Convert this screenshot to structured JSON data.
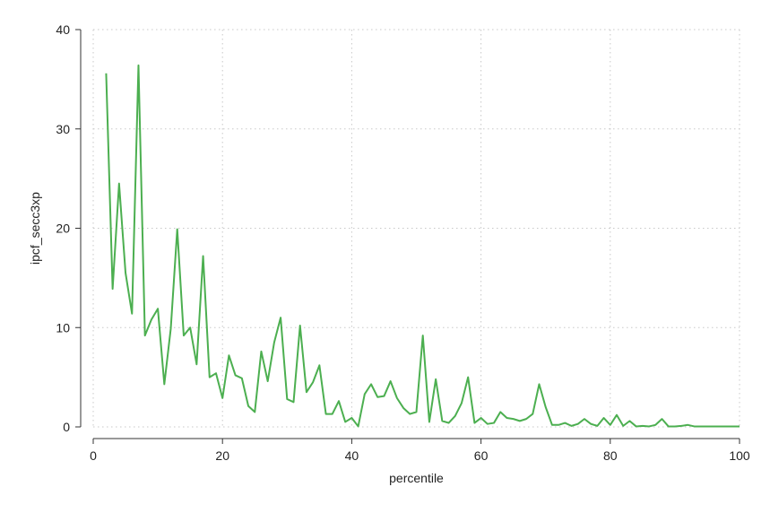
{
  "chart_data": {
    "type": "line",
    "title": "",
    "xlabel": "percentile",
    "ylabel": "ipcf_secc3xp",
    "xlim": [
      0,
      100
    ],
    "ylim": [
      0,
      40
    ],
    "x_ticks": [
      0,
      20,
      40,
      60,
      80,
      100
    ],
    "y_ticks": [
      0,
      10,
      20,
      30,
      40
    ],
    "grid": true,
    "line_color": "#4CAF50",
    "series": [
      {
        "x": [
          2,
          3,
          4,
          5,
          6,
          7,
          8,
          9,
          10,
          11,
          12,
          13,
          14,
          15,
          16,
          17,
          18,
          19,
          20,
          21,
          22,
          23,
          24,
          25,
          26,
          27,
          28,
          29,
          30,
          31,
          32,
          33,
          34,
          35,
          36,
          37,
          38,
          39,
          40,
          41,
          42,
          43,
          44,
          45,
          46,
          47,
          48,
          49,
          50,
          51,
          52,
          53,
          54,
          55,
          56,
          57,
          58,
          59,
          60,
          61,
          62,
          63,
          64,
          65,
          66,
          67,
          68,
          69,
          70,
          71,
          72,
          73,
          74,
          75,
          76,
          77,
          78,
          79,
          80,
          81,
          82,
          83,
          84,
          85,
          86,
          87,
          88,
          89,
          90,
          91,
          92,
          93,
          94,
          95,
          96,
          97,
          98,
          99,
          100
        ],
        "y": [
          35.6,
          13.9,
          24.5,
          15.5,
          11.4,
          36.4,
          9.2,
          10.8,
          11.9,
          4.3,
          9.9,
          19.9,
          9.2,
          10.0,
          6.3,
          17.2,
          5.0,
          5.4,
          2.9,
          7.2,
          5.2,
          4.9,
          2.1,
          1.5,
          7.6,
          4.6,
          8.5,
          11.0,
          2.8,
          2.5,
          10.2,
          3.5,
          4.5,
          6.2,
          1.3,
          1.3,
          2.6,
          0.5,
          0.9,
          0.05,
          3.3,
          4.3,
          3.0,
          3.1,
          4.6,
          2.9,
          1.9,
          1.3,
          1.5,
          9.2,
          0.5,
          4.8,
          0.6,
          0.4,
          1.1,
          2.4,
          5.0,
          0.4,
          0.9,
          0.3,
          0.4,
          1.5,
          0.9,
          0.8,
          0.6,
          0.8,
          1.3,
          4.3,
          2.0,
          0.2,
          0.2,
          0.4,
          0.1,
          0.3,
          0.8,
          0.3,
          0.1,
          0.9,
          0.2,
          1.2,
          0.1,
          0.6,
          0.05,
          0.1,
          0.05,
          0.2,
          0.8,
          0.05,
          0.05,
          0.1,
          0.2,
          0.05,
          0.05,
          0.05,
          0.05,
          0.05,
          0.05,
          0.05,
          0.05
        ]
      }
    ]
  }
}
